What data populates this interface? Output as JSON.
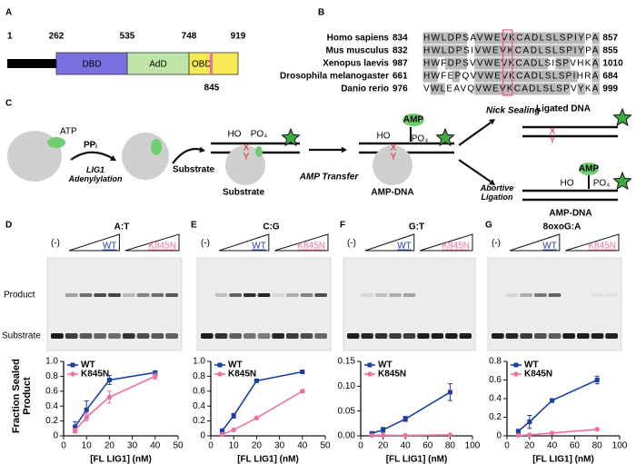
{
  "panel_labels": [
    "A",
    "B",
    "C",
    "D",
    "E",
    "F",
    "G"
  ],
  "domain_map": {
    "positions": [
      1,
      262,
      535,
      748,
      919
    ],
    "site": 845,
    "domains": [
      "DBD",
      "AdD",
      "OBD"
    ]
  },
  "alignment": {
    "rows": [
      {
        "species": "Homo sapiens",
        "start": 834,
        "sequence": "HWLDPSAVWEVKCADLSLSPIYPA",
        "end": 857
      },
      {
        "species": "Mus musculus",
        "start": 832,
        "sequence": "HWLDPSIVWEVKCADLSLSPIYPA",
        "end": 855
      },
      {
        "species": "Xenopus laevis",
        "start": 987,
        "sequence": "HWFDPSVVWEVKCADLSISPVHKA",
        "end": 1010
      },
      {
        "species": "Drosophila melanogaster",
        "start": 661,
        "sequence": "HWFEPQVVWEVKCADLSLSPIHRA",
        "end": 684
      },
      {
        "species": "Danio rerio",
        "start": 976,
        "sequence": "VWLEAVQVWEVKCADLSLSPVYKA",
        "end": 999
      }
    ]
  },
  "scheme": {
    "atp": "ATP",
    "ppi": "PPᵢ",
    "step1": "LIG1 Adenylylation",
    "substrate_arrow": "Substrate",
    "substrate": "Substrate",
    "ho": "HO",
    "po4": "PO₄",
    "x": "X",
    "y": "Y",
    "step2": "AMP Transfer",
    "amp": "AMP",
    "amp_dna": "AMP-DNA",
    "nick": "Nick Sealing",
    "ligated": "Ligated DNA",
    "abortive": "Abortive Ligation"
  },
  "gels": {
    "row_labels": [
      "Product",
      "Substrate"
    ],
    "control": "(-)",
    "wt": "WT",
    "mutant": "K845N",
    "titles": [
      "A:T",
      "C:G",
      "G:T",
      "8oxoG:A"
    ]
  },
  "chart_data": [
    {
      "type": "line",
      "y_label": "Fraction Sealed Product",
      "x_label": "[FL LIG1]  (nM)",
      "x": [
        5,
        10,
        20,
        40
      ],
      "xlim": [
        0,
        50
      ],
      "xticks": [
        0,
        10,
        20,
        30,
        40,
        50
      ],
      "ylim": [
        0,
        1
      ],
      "yticks": [
        0,
        0.2,
        0.4,
        0.6,
        0.8,
        {
          "value": 1,
          "label": "1.0"
        }
      ],
      "legend": "upper left",
      "series": [
        {
          "name": "WT",
          "color": "#1c3f9f",
          "values": [
            0.12,
            0.35,
            0.75,
            0.85
          ],
          "errors": [
            0.07,
            0.12,
            0.06,
            0.02
          ]
        },
        {
          "name": "K845N",
          "color": "#f06fa0",
          "values": [
            0.07,
            0.25,
            0.52,
            0.8
          ],
          "errors": [
            0.03,
            0.05,
            0.08,
            0.04
          ]
        }
      ]
    },
    {
      "type": "line",
      "x_label": "[FL LIG1]  (nM)",
      "x": [
        5,
        10,
        20,
        40
      ],
      "xlim": [
        0,
        50
      ],
      "xticks": [
        0,
        10,
        20,
        30,
        40,
        50
      ],
      "ylim": [
        0,
        1
      ],
      "yticks": [
        0,
        0.2,
        0.4,
        0.6,
        0.8,
        {
          "value": 1,
          "label": "1.0"
        }
      ],
      "legend": "upper left",
      "series": [
        {
          "name": "WT",
          "color": "#1c3f9f",
          "values": [
            0.07,
            0.27,
            0.74,
            0.86
          ],
          "errors": [
            0.01,
            0.03,
            0.02,
            0.01
          ]
        },
        {
          "name": "K845N",
          "color": "#f06fa0",
          "values": [
            0.02,
            0.08,
            0.24,
            0.6
          ],
          "errors": [
            0.01,
            0.01,
            0.01,
            0.02
          ]
        }
      ]
    },
    {
      "type": "line",
      "x_label": "[FL LIG1]  (nM)",
      "x": [
        10,
        20,
        40,
        80
      ],
      "xlim": [
        0,
        100
      ],
      "xticks": [
        0,
        20,
        40,
        60,
        80,
        100
      ],
      "ylim": [
        0,
        0.15
      ],
      "yticks": [
        {
          "value": 0,
          "label": "0.00"
        },
        0.05,
        {
          "value": 0.1,
          "label": "0.10"
        },
        0.15
      ],
      "legend": "upper left",
      "series": [
        {
          "name": "WT",
          "color": "#1c3f9f",
          "values": [
            0.005,
            0.012,
            0.034,
            0.088
          ],
          "errors": [
            0.002,
            0.005,
            0.005,
            0.017
          ]
        },
        {
          "name": "K845N",
          "color": "#f06fa0",
          "values": [
            0.001,
            0.001,
            0.001,
            0.002
          ],
          "errors": [
            0.001,
            0.001,
            0.001,
            0.001
          ]
        }
      ]
    },
    {
      "type": "line",
      "x_label": "[FL LIG1]  (nM)",
      "x": [
        10,
        20,
        40,
        80
      ],
      "xlim": [
        0,
        100
      ],
      "xticks": [
        0,
        20,
        40,
        60,
        80,
        100
      ],
      "ylim": [
        0,
        0.8
      ],
      "yticks": [
        0,
        0.2,
        0.4,
        0.6,
        0.8
      ],
      "legend": "upper left",
      "series": [
        {
          "name": "WT",
          "color": "#1c3f9f",
          "values": [
            0.05,
            0.15,
            0.38,
            0.6
          ],
          "errors": [
            0.02,
            0.07,
            0.02,
            0.04
          ]
        },
        {
          "name": "K845N",
          "color": "#f06fa0",
          "values": [
            0.005,
            0.01,
            0.03,
            0.07
          ],
          "errors": [
            0.003,
            0.005,
            0.005,
            0.005
          ]
        }
      ]
    }
  ]
}
